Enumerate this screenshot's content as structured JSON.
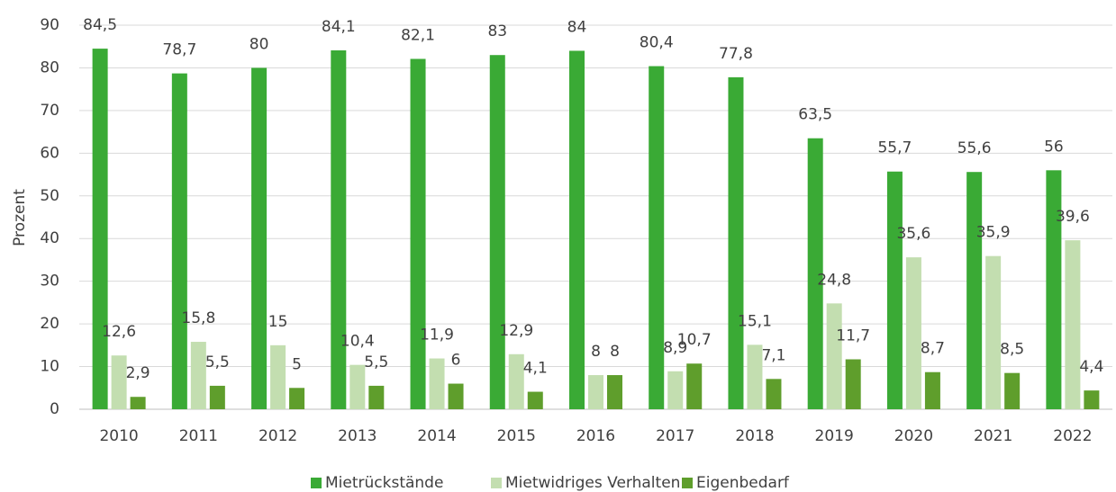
{
  "chart_data": {
    "type": "bar",
    "y_label": "Prozent",
    "categories": [
      "2010",
      "2011",
      "2012",
      "2013",
      "2014",
      "2015",
      "2016",
      "2017",
      "2018",
      "2019",
      "2020",
      "2021",
      "2022"
    ],
    "series": [
      {
        "name": "Mietrückstände",
        "color": "#3aaa35",
        "values": [
          84.5,
          78.7,
          80,
          84.1,
          82.1,
          83,
          84,
          80.4,
          77.8,
          63.5,
          55.7,
          55.6,
          56
        ],
        "value_labels": [
          "84,5",
          "78,7",
          "80",
          "84,1",
          "82,1",
          "83",
          "84",
          "80,4",
          "77,8",
          "63,5",
          "55,7",
          "55,6",
          "56"
        ]
      },
      {
        "name": "Mietwidriges Verhalten",
        "color": "#c3deb0",
        "values": [
          12.6,
          15.8,
          15,
          10.4,
          11.9,
          12.9,
          8,
          8.9,
          15.1,
          24.8,
          35.6,
          35.9,
          39.6
        ],
        "value_labels": [
          "12,6",
          "15,8",
          "15",
          "10,4",
          "11,9",
          "12,9",
          "8",
          "8,9",
          "15,1",
          "24,8",
          "35,6",
          "35,9",
          "39,6"
        ]
      },
      {
        "name": "Eigenbedarf",
        "color": "#5f9e2c",
        "values": [
          2.9,
          5.5,
          5,
          5.5,
          6,
          4.1,
          8,
          10.7,
          7.1,
          11.7,
          8.7,
          8.5,
          4.4
        ],
        "value_labels": [
          "2,9",
          "5,5",
          "5",
          "5,5",
          "6",
          "4,1",
          "8",
          "10,7",
          "7,1",
          "11,7",
          "8,7",
          "8,5",
          "4,4"
        ]
      }
    ],
    "ylim": [
      0,
      90
    ],
    "yticks": [
      0,
      10,
      20,
      30,
      40,
      50,
      60,
      70,
      80,
      90
    ],
    "grid": true,
    "legend": "bottom"
  }
}
